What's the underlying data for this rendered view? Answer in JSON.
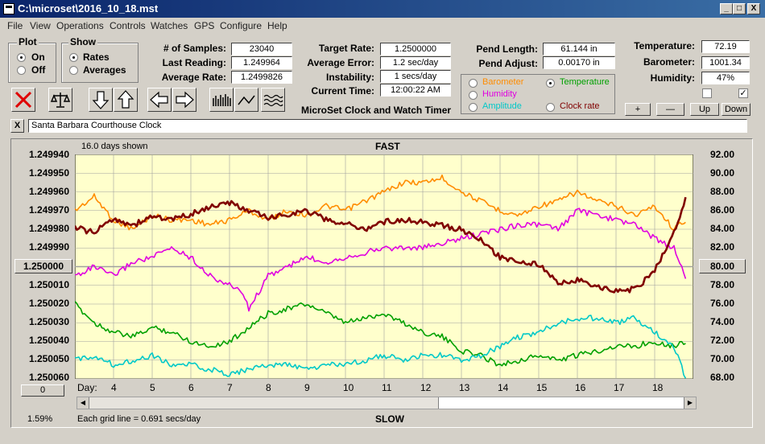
{
  "window": {
    "title": "C:\\microset\\2016_10_18.mst",
    "min_label": "_",
    "max_label": "□",
    "close_label": "X"
  },
  "menu": [
    "File",
    "View",
    "Operations",
    "Controls",
    "Watches",
    "GPS",
    "Configure",
    "Help"
  ],
  "plot_group": {
    "title": "Plot",
    "options": [
      "On",
      "Off"
    ],
    "selected": "On"
  },
  "show_group": {
    "title": "Show",
    "options": [
      "Rates",
      "Averages"
    ],
    "selected": "Rates"
  },
  "stats": {
    "samples_label": "# of Samples:",
    "samples": "23040",
    "last_reading_label": "Last Reading:",
    "last_reading": "1.249964",
    "average_rate_label": "Average Rate:",
    "average_rate": "1.2499826",
    "target_rate_label": "Target Rate:",
    "target_rate": "1.2500000",
    "average_error_label": "Average Error:",
    "average_error": "1.2 sec/day",
    "instability_label": "Instability:",
    "instability": "1 secs/day",
    "current_time_label": "Current Time:",
    "current_time": "12:00:22 AM",
    "pend_length_label": "Pend Length:",
    "pend_length": "61.144 in",
    "pend_adjust_label": "Pend Adjust:",
    "pend_adjust": "0.00170 in",
    "temperature_label": "Temperature:",
    "temperature": "72.19",
    "barometer_label": "Barometer:",
    "barometer": "1001.34",
    "humidity_label": "Humidity:",
    "humidity": "47%"
  },
  "app_name": "MicroSet Clock and Watch Timer",
  "series_select": {
    "options": [
      {
        "label": "Barometer",
        "color": "#ff8c00",
        "selected": false
      },
      {
        "label": "Temperature",
        "color": "#00a000",
        "selected": true
      },
      {
        "label": "Humidity",
        "color": "#e000e0",
        "selected": false
      },
      {
        "label": "Clock rate",
        "color": "#800000",
        "selected": false
      },
      {
        "label": "Amplitude",
        "color": "#00c8c8",
        "selected": false
      }
    ]
  },
  "scale_buttons": {
    "plus": "+",
    "minus": "—",
    "up": "Up",
    "down": "Down"
  },
  "checkboxes": [
    {
      "checked": false,
      "mark": ""
    },
    {
      "checked": true,
      "mark": "✓"
    }
  ],
  "toolbar_icons": [
    "clear-x-icon",
    "balance-scale-icon",
    "arrow-down-icon",
    "arrow-up-icon",
    "arrow-left-icon",
    "arrow-right-icon",
    "bar-graph-icon",
    "line-graph-icon",
    "wave-graph-icon"
  ],
  "clock_name": "Santa Barbara Courthouse Clock",
  "close_clock_label": "X",
  "chart_header": {
    "days_shown": "16.0 days shown",
    "top_label": "FAST",
    "bottom_label": "SLOW"
  },
  "footer": {
    "grid_note": "Each grid line = 0.691 secs/day",
    "percent": "1.59%",
    "left_zero": "0",
    "day_label": "Day:"
  },
  "left_axis_button": "1.250000",
  "right_axis_button": "80.00",
  "chart_data": {
    "type": "line",
    "colors": {
      "plot_bg": "#ffffcc",
      "grid": "#a0a0a0"
    },
    "y_left": {
      "ticks": [
        "1.249940",
        "1.249950",
        "1.249960",
        "1.249970",
        "1.249980",
        "1.249990",
        "1.250000",
        "1.250010",
        "1.250020",
        "1.250030",
        "1.250040",
        "1.250050",
        "1.250060"
      ],
      "ylim": [
        1.24994,
        1.25006
      ],
      "inverted": true
    },
    "y_right": {
      "ticks": [
        "92.00",
        "90.00",
        "88.00",
        "86.00",
        "84.00",
        "82.00",
        "80.00",
        "78.00",
        "76.00",
        "74.00",
        "72.00",
        "70.00",
        "68.00"
      ],
      "ylim": [
        68,
        92
      ]
    },
    "x": {
      "label": "Day:",
      "ticks": [
        4,
        5,
        6,
        7,
        8,
        9,
        10,
        11,
        12,
        13,
        14,
        15,
        16,
        17,
        18
      ],
      "xlim": [
        3,
        19
      ]
    },
    "series": [
      {
        "name": "Barometer",
        "color": "#ff8c00",
        "axis": "right",
        "x": [
          3,
          3.5,
          4,
          4.5,
          5,
          5.5,
          6,
          6.5,
          7,
          7.5,
          8,
          8.5,
          9,
          9.5,
          10,
          10.5,
          11,
          11.5,
          12,
          12.5,
          13,
          13.5,
          14,
          14.5,
          15,
          15.5,
          16,
          16.5,
          17,
          17.5,
          18,
          18.5,
          18.8
        ],
        "y": [
          86,
          87.5,
          85,
          84,
          85.5,
          85,
          85,
          84.5,
          85,
          86,
          85,
          86,
          85.5,
          86.5,
          86,
          87,
          88,
          89,
          89,
          89.5,
          88,
          87,
          86,
          85.5,
          86.5,
          87,
          88,
          87,
          86.5,
          85.5,
          86.5,
          84,
          85
        ]
      },
      {
        "name": "Temperature",
        "color": "#00a000",
        "axis": "right",
        "x": [
          3,
          3.5,
          4,
          4.5,
          5,
          5.5,
          6,
          6.5,
          7,
          7.5,
          8,
          8.5,
          9,
          9.5,
          10,
          10.5,
          11,
          11.5,
          12,
          12.5,
          13,
          13.5,
          14,
          14.5,
          15,
          15.5,
          16,
          16.5,
          17,
          17.5,
          18,
          18.5,
          18.8
        ],
        "y": [
          76,
          74,
          73,
          72.5,
          73.5,
          73,
          72,
          71.5,
          72,
          73.5,
          75,
          75.5,
          76,
          75,
          74,
          74.5,
          75,
          74,
          73,
          72.5,
          71,
          70.5,
          69.5,
          70,
          70.5,
          70,
          70.5,
          71,
          71.5,
          71.5,
          72,
          71.5,
          72
        ]
      },
      {
        "name": "Humidity",
        "color": "#e000e0",
        "axis": "right",
        "x": [
          3,
          3.5,
          4,
          4.5,
          5,
          5.5,
          6,
          6.5,
          7,
          7.3,
          7.5,
          8,
          8.5,
          9,
          9.5,
          10,
          10.5,
          11,
          11.5,
          12,
          12.5,
          13,
          13.5,
          14,
          14.5,
          15,
          15.5,
          16,
          16.5,
          17,
          17.5,
          18,
          18.5,
          18.8
        ],
        "y": [
          79,
          80,
          79,
          80.5,
          81,
          82,
          81,
          79,
          78,
          77.5,
          75.5,
          79,
          80,
          81,
          80.5,
          81,
          81.5,
          82,
          82,
          82,
          82.5,
          83,
          83.5,
          84,
          84.5,
          84.5,
          84,
          86,
          85.5,
          85,
          84.5,
          83,
          82,
          79
        ]
      },
      {
        "name": "Clock rate",
        "color": "#800000",
        "axis": "left",
        "x": [
          3,
          3.5,
          4,
          4.5,
          5,
          5.5,
          6,
          6.5,
          7,
          7.5,
          8,
          8.5,
          9,
          9.5,
          10,
          10.5,
          11,
          11.5,
          12,
          12.5,
          13,
          13.5,
          14,
          14.5,
          15,
          15.5,
          16,
          16.5,
          17,
          17.5,
          18,
          18.5,
          18.8
        ],
        "y": [
          1.249979,
          1.249982,
          1.249974,
          1.249978,
          1.249973,
          1.249975,
          1.249972,
          1.249968,
          1.249966,
          1.24997,
          1.249974,
          1.249972,
          1.24997,
          1.249975,
          1.249977,
          1.24998,
          1.249976,
          1.249975,
          1.249976,
          1.249978,
          1.24998,
          1.249986,
          1.249995,
          1.249997,
          1.249999,
          1.250009,
          1.250007,
          1.250011,
          1.250013,
          1.250012,
          1.250002,
          1.249982,
          1.249963
        ]
      },
      {
        "name": "Amplitude",
        "color": "#00c8c8",
        "axis": "right",
        "x": [
          3,
          3.5,
          4,
          4.5,
          5,
          5.5,
          6,
          6.5,
          7,
          7.5,
          8,
          8.5,
          9,
          9.5,
          10,
          10.5,
          11,
          11.5,
          12,
          12.5,
          13,
          13.5,
          14,
          14.5,
          15,
          15.5,
          16,
          16.5,
          17,
          17.5,
          18,
          18.5,
          18.8
        ],
        "y": [
          70,
          70.5,
          69.5,
          70,
          70.5,
          69.5,
          69.5,
          69,
          68.5,
          69,
          69.5,
          69.5,
          69,
          69.5,
          69.5,
          70,
          70.5,
          70,
          70.5,
          70.5,
          70,
          70.5,
          71.5,
          72.5,
          73,
          74,
          74.5,
          74.5,
          74,
          74.5,
          73,
          71.5,
          68
        ]
      }
    ]
  }
}
